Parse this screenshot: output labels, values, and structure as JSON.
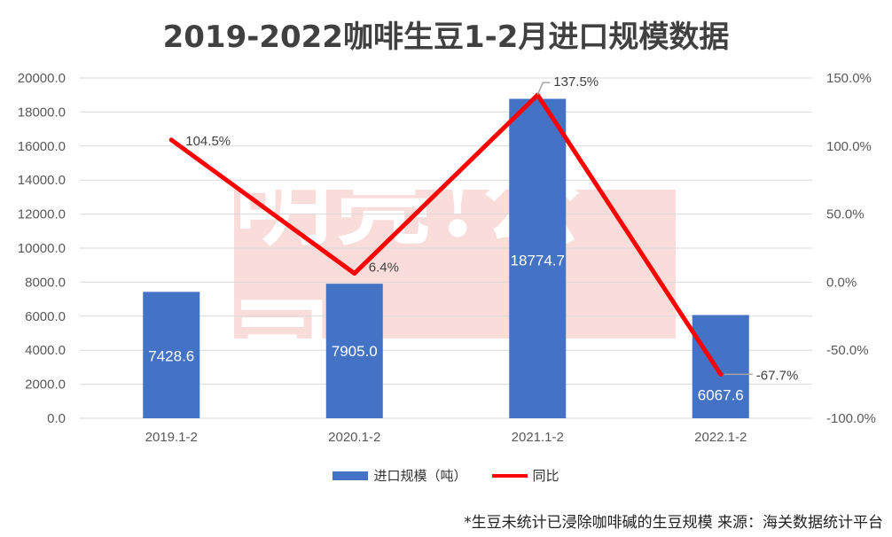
{
  "title": "2019-2022咖啡生豆1-2月进口规模数据",
  "footnote": "*生豆未统计已浸除咖啡碱的生豆规模  来源：海关数据统计平台",
  "watermark_text": "明亮!公司",
  "colors": {
    "bar": "#4472C4",
    "line": "#FF0000",
    "grid": "#D9D9D9",
    "axis_text": "#595959",
    "watermark_bg": "#E8463C"
  },
  "chart_data": {
    "type": "bar+line",
    "title": "2019-2022咖啡生豆1-2月进口规模数据",
    "categories": [
      "2019.1-2",
      "2020.1-2",
      "2021.1-2",
      "2022.1-2"
    ],
    "series": [
      {
        "name": "进口规模（吨）",
        "type": "bar",
        "axis": "left",
        "values": [
          7428.6,
          7905.0,
          18774.7,
          6067.6
        ],
        "labels": [
          "7428.6",
          "7905.0",
          "18774.7",
          "6067.6"
        ]
      },
      {
        "name": "同比",
        "type": "line",
        "axis": "right",
        "values": [
          104.5,
          6.4,
          137.5,
          -67.7
        ],
        "labels": [
          "104.5%",
          "6.4%",
          "137.5%",
          "-67.7%"
        ]
      }
    ],
    "left_axis": {
      "min": 0,
      "max": 20000,
      "step": 2000,
      "ticks": [
        "0.0",
        "2000.0",
        "4000.0",
        "6000.0",
        "8000.0",
        "10000.0",
        "12000.0",
        "14000.0",
        "16000.0",
        "18000.0",
        "20000.0"
      ]
    },
    "right_axis": {
      "min": -100,
      "max": 150,
      "step": 50,
      "ticks": [
        "-100.0%",
        "-50.0%",
        "0.0%",
        "50.0%",
        "100.0%",
        "150.0%"
      ]
    },
    "grid": true,
    "legend_position": "bottom"
  }
}
